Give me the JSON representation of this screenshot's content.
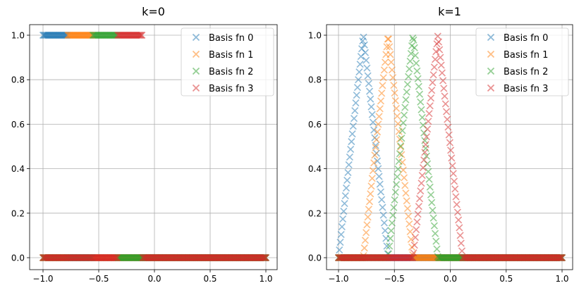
{
  "chart_data": [
    {
      "type": "scatter",
      "marker": "x",
      "title": "k=0",
      "xlim": [
        -1.1,
        1.1
      ],
      "ylim": [
        -0.05,
        1.05
      ],
      "xticks": [
        "−1.0",
        "−0.5",
        "0.0",
        "0.5",
        "1.0"
      ],
      "xtick_values": [
        -1.0,
        -0.5,
        0.0,
        0.5,
        1.0
      ],
      "yticks": [
        "0.0",
        "0.2",
        "0.4",
        "0.6",
        "0.8",
        "1.0"
      ],
      "ytick_values": [
        0.0,
        0.2,
        0.4,
        0.6,
        0.8,
        1.0
      ],
      "grid": true,
      "legend": "top-right",
      "series": [
        {
          "name": "Basis fn 0",
          "color": "#1f77b4",
          "x": [
            -1,
            -0.778,
            -0.778,
            1
          ],
          "y": [
            1,
            1,
            0,
            0
          ]
        },
        {
          "name": "Basis fn 1",
          "color": "#ff7f0e",
          "x": [
            -1,
            -0.778,
            -0.778,
            -0.556,
            -0.556,
            1
          ],
          "y": [
            0,
            0,
            1,
            1,
            0,
            0
          ]
        },
        {
          "name": "Basis fn 2",
          "color": "#2ca02c",
          "x": [
            -1,
            -0.556,
            -0.556,
            -0.333,
            -0.333,
            1
          ],
          "y": [
            0,
            0,
            1,
            1,
            0,
            0
          ]
        },
        {
          "name": "Basis fn 3",
          "color": "#d62728",
          "x": [
            -1,
            -0.333,
            -0.333,
            -0.111,
            -0.111,
            1
          ],
          "y": [
            0,
            0,
            1,
            1,
            0,
            0
          ]
        }
      ]
    },
    {
      "type": "scatter",
      "marker": "x",
      "title": "k=1",
      "xlim": [
        -1.1,
        1.1
      ],
      "ylim": [
        -0.05,
        1.05
      ],
      "xticks": [
        "−1.0",
        "−0.5",
        "0.0",
        "0.5",
        "1.0"
      ],
      "xtick_values": [
        -1.0,
        -0.5,
        0.0,
        0.5,
        1.0
      ],
      "yticks": [
        "0.0",
        "0.2",
        "0.4",
        "0.6",
        "0.8",
        "1.0"
      ],
      "ytick_values": [
        0.0,
        0.2,
        0.4,
        0.6,
        0.8,
        1.0
      ],
      "grid": true,
      "legend": "top-right",
      "series": [
        {
          "name": "Basis fn 0",
          "color": "#1f77b4",
          "x": [
            -1,
            -0.778,
            -0.556,
            1
          ],
          "y": [
            0,
            1,
            0,
            0
          ]
        },
        {
          "name": "Basis fn 1",
          "color": "#ff7f0e",
          "x": [
            -1,
            -0.778,
            -0.556,
            -0.333,
            1
          ],
          "y": [
            0,
            0,
            1,
            0,
            0
          ]
        },
        {
          "name": "Basis fn 2",
          "color": "#2ca02c",
          "x": [
            -1,
            -0.556,
            -0.333,
            -0.111,
            1
          ],
          "y": [
            0,
            0,
            1,
            0,
            0
          ]
        },
        {
          "name": "Basis fn 3",
          "color": "#d62728",
          "x": [
            -1,
            -0.333,
            -0.111,
            0.111,
            1
          ],
          "y": [
            0,
            0,
            1,
            0,
            0
          ]
        }
      ]
    }
  ]
}
